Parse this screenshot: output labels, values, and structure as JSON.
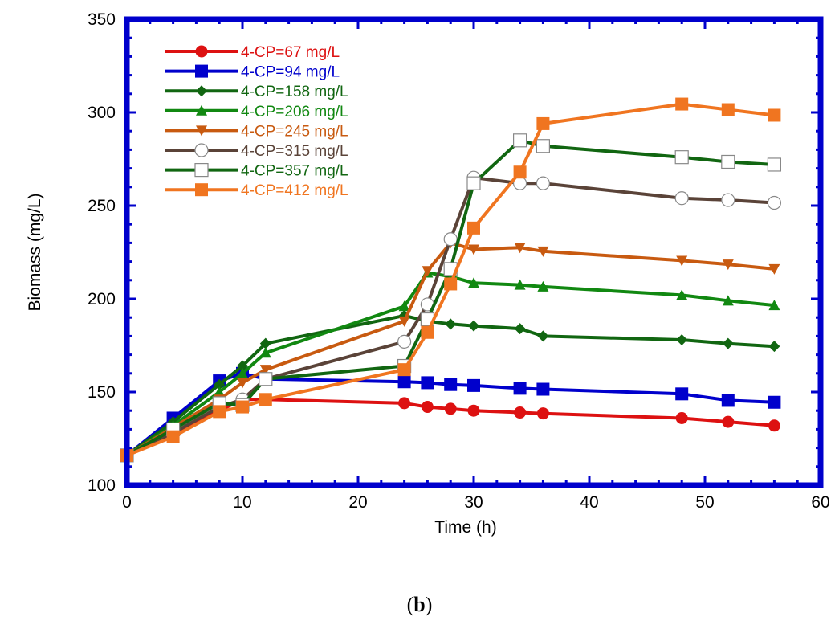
{
  "caption": {
    "open": "(",
    "letter": "b",
    "close": ")"
  },
  "chart_data": {
    "type": "line",
    "title": "",
    "xlabel": "Time (h)",
    "ylabel": "Biomass (mg/L)",
    "xlim": [
      0,
      60
    ],
    "ylim": [
      100,
      350
    ],
    "xticks": [
      0,
      10,
      20,
      30,
      40,
      50,
      60
    ],
    "yticks": [
      100,
      150,
      200,
      250,
      300,
      350
    ],
    "grid": false,
    "legend_position": "top-left",
    "frame_color": "#0000cc",
    "series": [
      {
        "name": "4-CP=67 mg/L",
        "color": "#dd1111",
        "marker": "circle",
        "x": [
          0,
          4,
          8,
          10,
          12,
          24,
          26,
          28,
          30,
          34,
          36,
          48,
          52,
          56
        ],
        "y": [
          116,
          127,
          140,
          146,
          146,
          144,
          142,
          141,
          140,
          139,
          138.5,
          136,
          134,
          132
        ]
      },
      {
        "name": "4-CP=94 mg/L",
        "color": "#0000cc",
        "marker": "square",
        "x": [
          0,
          4,
          8,
          10,
          12,
          24,
          26,
          28,
          30,
          34,
          36,
          48,
          52,
          56
        ],
        "y": [
          116,
          136,
          156,
          160,
          157,
          155.5,
          155,
          154,
          153.5,
          152,
          151.5,
          149,
          145.5,
          144.5
        ]
      },
      {
        "name": "4-CP=158 mg/L",
        "color": "#116611",
        "marker": "diamond",
        "x": [
          0,
          4,
          8,
          10,
          12,
          24,
          26,
          28,
          30,
          34,
          36,
          48,
          52,
          56
        ],
        "y": [
          116,
          134,
          154,
          164,
          176,
          191,
          188,
          186.5,
          185.5,
          184,
          180,
          178,
          176,
          174.5
        ]
      },
      {
        "name": "4-CP=206 mg/L",
        "color": "#118811",
        "marker": "triangle-up",
        "x": [
          0,
          4,
          8,
          10,
          12,
          24,
          26,
          28,
          30,
          34,
          36,
          48,
          52,
          56
        ],
        "y": [
          116,
          132,
          150,
          160,
          171,
          196,
          214,
          212,
          208.5,
          207.5,
          206.5,
          202,
          199,
          196.5
        ]
      },
      {
        "name": "4-CP=245 mg/L",
        "color": "#c85a10",
        "marker": "triangle-down",
        "x": [
          0,
          4,
          8,
          10,
          12,
          24,
          26,
          28,
          30,
          34,
          36,
          48,
          52,
          56
        ],
        "y": [
          116,
          131,
          146,
          155,
          162,
          188,
          215,
          230,
          226.5,
          227.5,
          225.5,
          220.5,
          218.5,
          216
        ]
      },
      {
        "name": "4-CP=315 mg/L",
        "color": "#5a4338",
        "marker": "open-circle",
        "x": [
          0,
          4,
          8,
          10,
          12,
          24,
          26,
          28,
          30,
          34,
          36,
          48,
          52,
          56
        ],
        "y": [
          116,
          128,
          142,
          146,
          157,
          177,
          197,
          232,
          265,
          262,
          262,
          254,
          253,
          251.5
        ]
      },
      {
        "name": "4-CP=357 mg/L",
        "color": "#116611",
        "marker": "open-square",
        "x": [
          0,
          4,
          8,
          10,
          12,
          24,
          26,
          28,
          30,
          34,
          36,
          48,
          52,
          56
        ],
        "y": [
          116,
          130,
          144,
          143,
          157,
          164,
          189,
          216,
          262,
          285,
          282,
          276,
          273.5,
          272
        ]
      },
      {
        "name": "4-CP=412 mg/L",
        "color": "#f07520",
        "marker": "square",
        "x": [
          0,
          4,
          8,
          10,
          12,
          24,
          26,
          28,
          30,
          34,
          36,
          48,
          52,
          56
        ],
        "y": [
          116,
          126,
          139.5,
          142,
          146,
          162,
          182,
          208,
          238,
          268,
          294,
          304.5,
          301.5,
          298.5
        ]
      }
    ]
  }
}
